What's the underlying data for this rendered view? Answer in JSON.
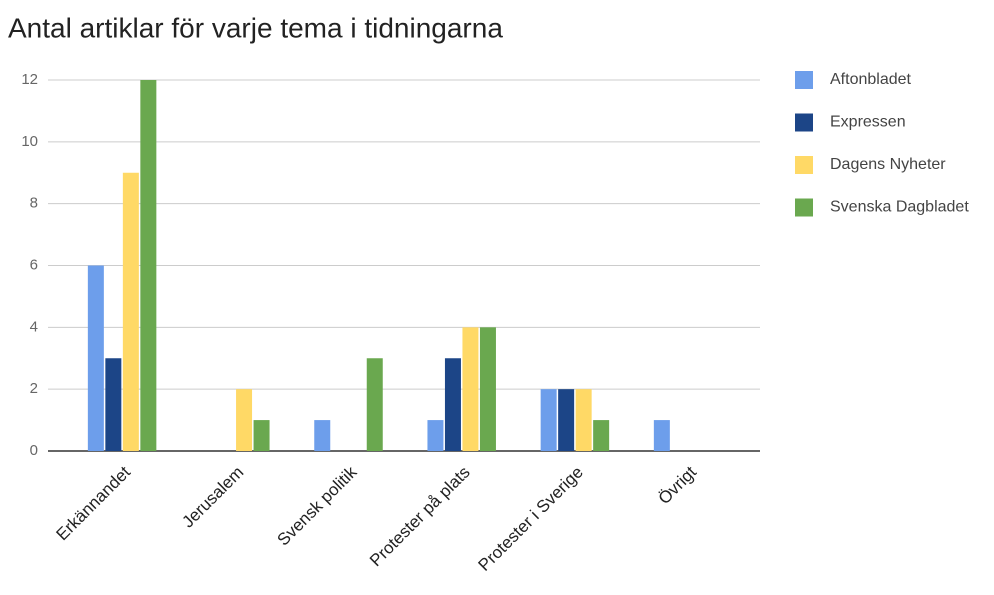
{
  "chart_data": {
    "type": "bar",
    "title": "Antal artiklar för varje tema i tidningarna",
    "categories": [
      "Erkännandet",
      "Jerusalem",
      "Svensk politik",
      "Protester på plats",
      "Protester i Sverige",
      "Övrigt"
    ],
    "series": [
      {
        "name": "Aftonbladet",
        "color": "#6d9eeb",
        "values": [
          6,
          0,
          1,
          1,
          2,
          1
        ]
      },
      {
        "name": "Expressen",
        "color": "#1c4587",
        "values": [
          3,
          0,
          0,
          3,
          2,
          0
        ]
      },
      {
        "name": "Dagens Nyheter",
        "color": "#ffd966",
        "values": [
          9,
          2,
          0,
          4,
          2,
          0
        ]
      },
      {
        "name": "Svenska Dagbladet",
        "color": "#6aa84f",
        "values": [
          12,
          1,
          3,
          4,
          1,
          0
        ]
      }
    ],
    "ylim": [
      0,
      12
    ],
    "yticks": [
      0,
      2,
      4,
      6,
      8,
      10,
      12
    ],
    "grid": true,
    "legend": "right"
  }
}
